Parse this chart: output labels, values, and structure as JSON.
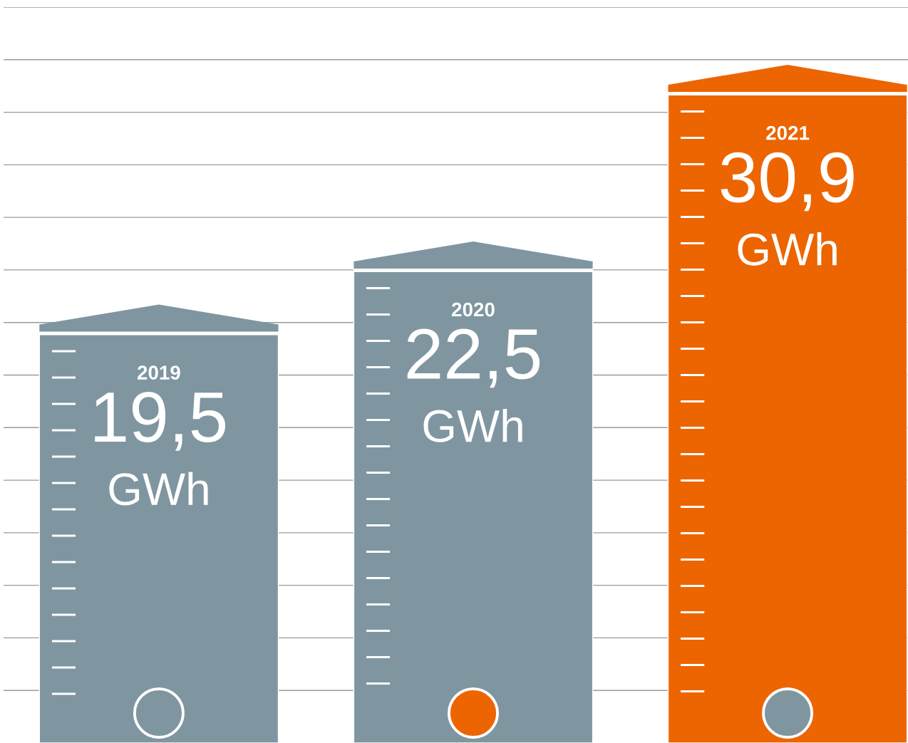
{
  "chart_data": {
    "type": "bar",
    "categories": [
      "2019",
      "2020",
      "2021"
    ],
    "values": [
      19.5,
      22.5,
      30.9
    ],
    "colors": [
      "#7f96a1",
      "#7f96a1",
      "#ec6500"
    ],
    "value_labels": [
      "19,5\nGWh",
      "22,5\nGWh",
      "30,9\nGWh"
    ],
    "ylim": [
      0,
      35
    ],
    "yticks": [
      {
        "value": 2.5,
        "label": null
      },
      {
        "value": 5,
        "label": null
      },
      {
        "value": 7.5,
        "label": null
      },
      {
        "value": 10,
        "label": null
      },
      {
        "value": 12.5,
        "label": null
      },
      {
        "value": 15,
        "label": null
      },
      {
        "value": 17.5,
        "label": null
      },
      {
        "value": 20,
        "label": null
      },
      {
        "value": 22.5,
        "label": null
      },
      {
        "value": 25,
        "label": null
      },
      {
        "value": 27.5,
        "label": null
      },
      {
        "value": 30,
        "label": null
      },
      {
        "value": 32.5,
        "label": null
      },
      {
        "value": 35,
        "label": null
      }
    ],
    "grid": "y",
    "tick_labels": false
  }
}
